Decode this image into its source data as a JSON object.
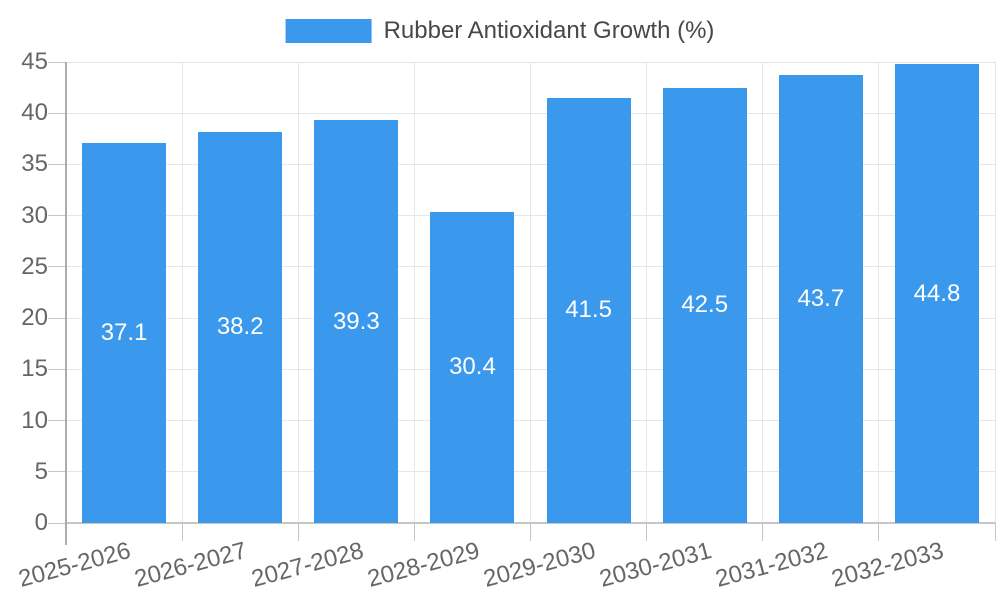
{
  "chart_data": {
    "type": "bar",
    "title": "",
    "legend": "Rubber Antioxidant Growth (%)",
    "legend_position": "top",
    "categories": [
      "2025-2026",
      "2026-2027",
      "2027-2028",
      "2028-2029",
      "2029-2030",
      "2030-2031",
      "2031-2032",
      "2032-2033"
    ],
    "series": [
      {
        "name": "Rubber Antioxidant Growth (%)",
        "values": [
          37.1,
          38.2,
          39.3,
          30.4,
          41.5,
          42.5,
          43.7,
          44.8
        ]
      }
    ],
    "value_labels": [
      "37.1",
      "38.2",
      "39.3",
      "30.4",
      "41.5",
      "42.5",
      "43.7",
      "44.8"
    ],
    "xlabel": "",
    "ylabel": "",
    "ylim": [
      0,
      45
    ],
    "ytick_step": 5,
    "yticks": [
      0,
      5,
      10,
      15,
      20,
      25,
      30,
      35,
      40,
      45
    ],
    "grid": true,
    "x_label_rotation_deg": -15
  },
  "colors": {
    "bar": "#3A99EC",
    "grid": "#E6E6E6",
    "axis_line": "#ACACAC",
    "tick_line": "#C6C6C6",
    "tick_label": "#666666",
    "legend_text": "#484848",
    "value_label": "#FFFFFF",
    "background": "#FFFFFF"
  }
}
